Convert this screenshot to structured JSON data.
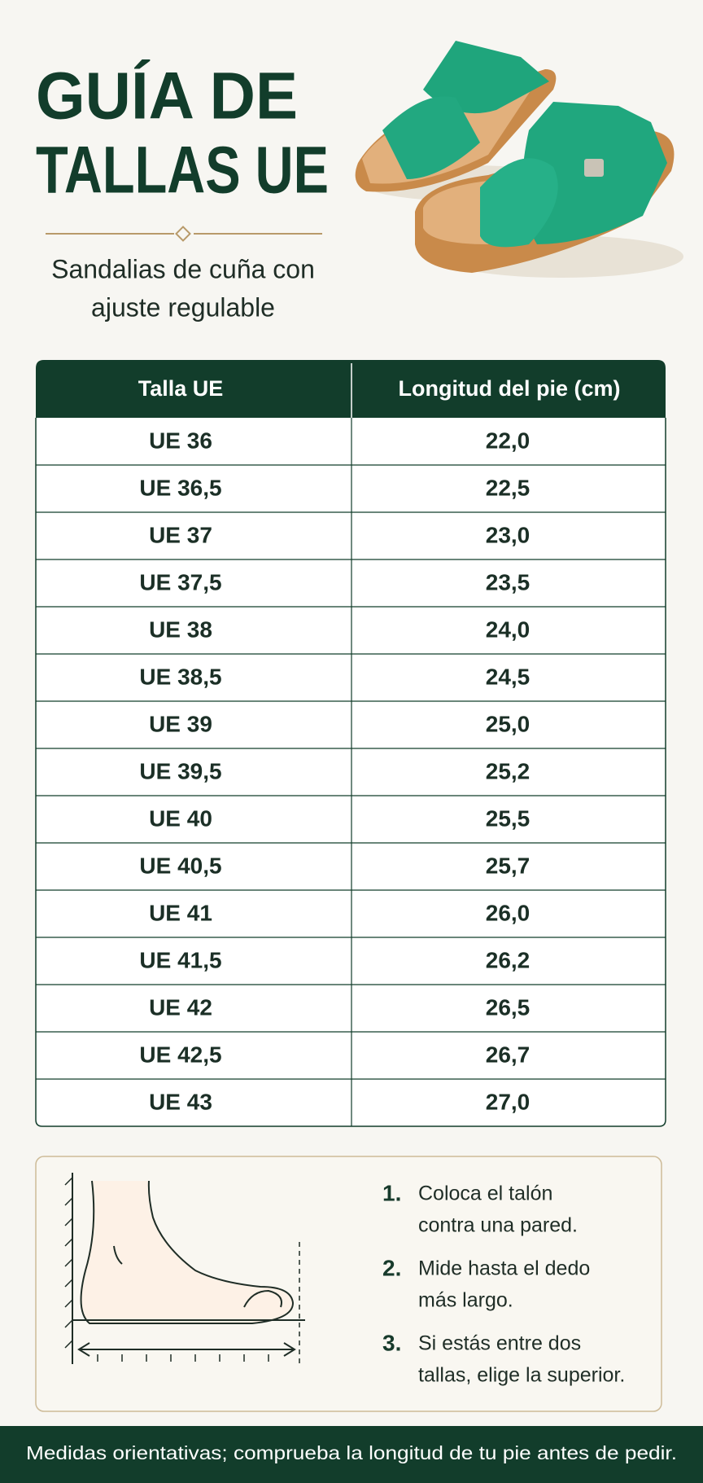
{
  "header": {
    "title": [
      "GUÍA DE",
      "TALLAS UE"
    ],
    "subtitle": [
      "Sandalias de cuña con",
      "ajuste regulable"
    ]
  },
  "table": {
    "columns": [
      "Talla UE",
      "Longitud del pie (cm)"
    ],
    "rows": [
      [
        "UE 36",
        "22,0"
      ],
      [
        "UE 36,5",
        "22,5"
      ],
      [
        "UE 37",
        "23,0"
      ],
      [
        "UE 37,5",
        "23,5"
      ],
      [
        "UE 38",
        "24,0"
      ],
      [
        "UE 38,5",
        "24,5"
      ],
      [
        "UE 39",
        "25,0"
      ],
      [
        "UE 39,5",
        "25,2"
      ],
      [
        "UE 40",
        "25,5"
      ],
      [
        "UE 40,5",
        "25,7"
      ],
      [
        "UE 41",
        "26,0"
      ],
      [
        "UE 41,5",
        "26,2"
      ],
      [
        "UE 42",
        "26,5"
      ],
      [
        "UE 42,5",
        "26,7"
      ],
      [
        "UE 43",
        "27,0"
      ]
    ]
  },
  "steps": [
    {
      "number": "1.",
      "text": [
        "Coloca el talón",
        "contra una pared."
      ]
    },
    {
      "number": "2.",
      "text": [
        "Mide hasta el dedo",
        "más largo."
      ]
    },
    {
      "number": "3.",
      "text": [
        "Si estás entre dos",
        "tallas, elige la superior."
      ]
    }
  ],
  "footer": "Medidas orientativas; comprueba la longitud de tu pie antes de pedir."
}
